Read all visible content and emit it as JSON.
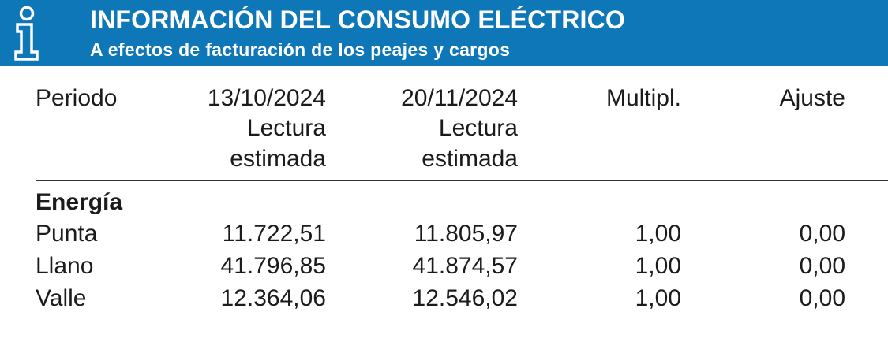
{
  "header": {
    "icon": "info-icon",
    "title": "INFORMACIÓN DEL CONSUMO ELÉCTRICO",
    "subtitle": "A efectos de facturación de los peajes y cargos",
    "color": "#0d77b8"
  },
  "columns": {
    "periodo": "Periodo",
    "date1": "13/10/2024",
    "date1_note_line1": "Lectura",
    "date1_note_line2": "estimada",
    "date2": "20/11/2024",
    "date2_note_line1": "Lectura",
    "date2_note_line2": "estimada",
    "multipl": "Multipl.",
    "ajuste": "Ajuste"
  },
  "section": {
    "title": "Energía"
  },
  "rows": [
    {
      "label": "Punta",
      "reading1": "11.722,51",
      "reading2": "11.805,97",
      "multipl": "1,00",
      "ajuste": "0,00"
    },
    {
      "label": "Llano",
      "reading1": "41.796,85",
      "reading2": "41.874,57",
      "multipl": "1,00",
      "ajuste": "0,00"
    },
    {
      "label": "Valle",
      "reading1": "12.364,06",
      "reading2": "12.546,02",
      "multipl": "1,00",
      "ajuste": "0,00"
    }
  ]
}
